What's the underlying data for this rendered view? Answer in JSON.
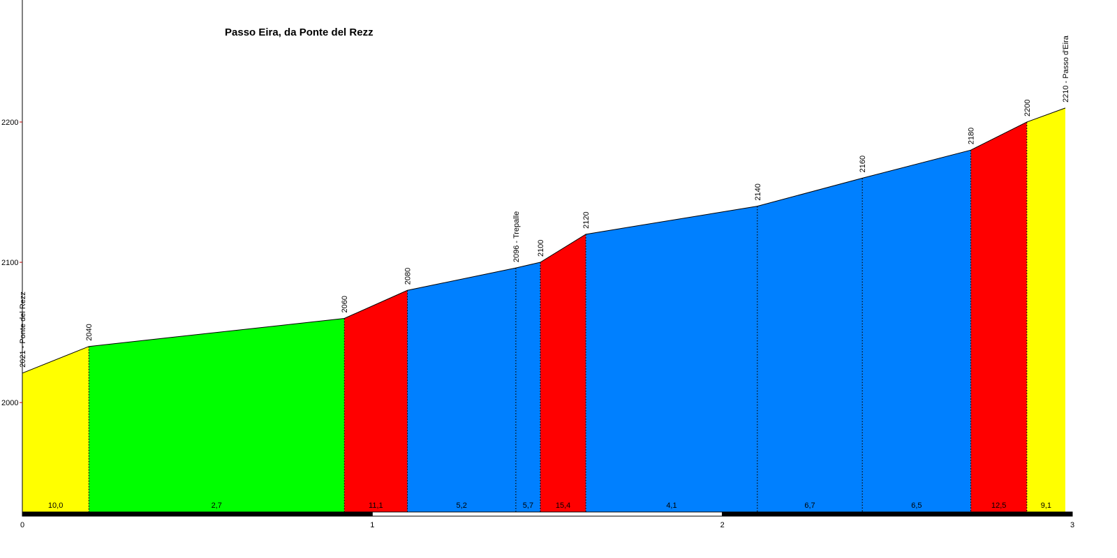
{
  "chart_data": {
    "type": "area",
    "title": "Passo Eira, da Ponte del Rezz",
    "xlabel": "",
    "ylabel": "",
    "xlim": [
      0,
      3
    ],
    "ylim": [
      1922,
      2287
    ],
    "x_ticks": [
      "0",
      "1",
      "2",
      "3"
    ],
    "y_ticks": [
      "2000",
      "2100",
      "2200"
    ],
    "points": [
      {
        "x": 0.0,
        "y": 2021,
        "label": "2021 - Ponte del Rezz"
      },
      {
        "x": 0.19,
        "y": 2040,
        "label": "2040"
      },
      {
        "x": 0.92,
        "y": 2060,
        "label": "2060"
      },
      {
        "x": 1.1,
        "y": 2080,
        "label": "2080"
      },
      {
        "x": 1.41,
        "y": 2096,
        "label": "2096 - Trepalle"
      },
      {
        "x": 1.48,
        "y": 2100,
        "label": "2100"
      },
      {
        "x": 1.61,
        "y": 2120,
        "label": "2120"
      },
      {
        "x": 2.1,
        "y": 2140,
        "label": "2140"
      },
      {
        "x": 2.4,
        "y": 2160,
        "label": "2160"
      },
      {
        "x": 2.71,
        "y": 2180,
        "label": "2180"
      },
      {
        "x": 2.87,
        "y": 2200,
        "label": "2200"
      },
      {
        "x": 2.98,
        "y": 2210,
        "label": "2210 - Passo d'Eira"
      }
    ],
    "segments": [
      {
        "gradient": "10,0",
        "color": "#ffff00"
      },
      {
        "gradient": "2,7",
        "color": "#00ff00"
      },
      {
        "gradient": "11,1",
        "color": "#ff0000"
      },
      {
        "gradient": "5,2",
        "color": "#0080ff"
      },
      {
        "gradient": "5,7",
        "color": "#0080ff"
      },
      {
        "gradient": "15,4",
        "color": "#ff0000"
      },
      {
        "gradient": "4,1",
        "color": "#0080ff"
      },
      {
        "gradient": "6,7",
        "color": "#0080ff"
      },
      {
        "gradient": "6,5",
        "color": "#0080ff"
      },
      {
        "gradient": "12,5",
        "color": "#ff0000"
      },
      {
        "gradient": "9,1",
        "color": "#ffff00"
      }
    ]
  }
}
